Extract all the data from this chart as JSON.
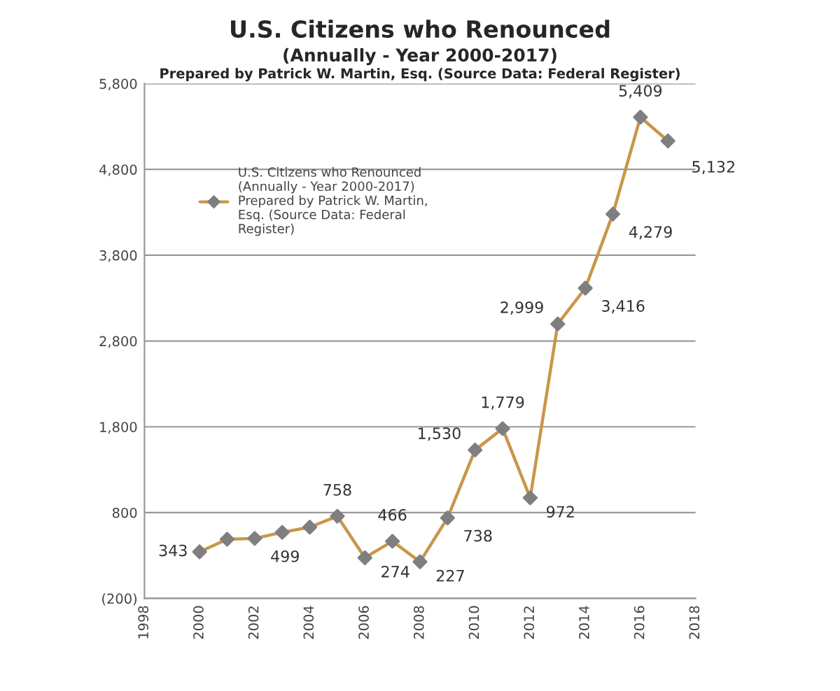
{
  "chart_data": {
    "type": "line",
    "title": "U.S. Citizens who Renounced",
    "subtitle": "(Annually - Year 2000-2017)",
    "annotations": [
      "Prepared by Patrick W. Martin, Esq. (Source Data: Federal Register)"
    ],
    "x": [
      2000,
      2001,
      2002,
      2003,
      2004,
      2005,
      2006,
      2007,
      2008,
      2009,
      2010,
      2011,
      2012,
      2013,
      2014,
      2015,
      2016,
      2017
    ],
    "series": [
      {
        "name": "U.S. Citizens who Renounced (Annually - Year 2000-2017) Prepared by Patrick W. Martin, Esq. (Source Data: Federal Register)",
        "color": "#c9964a",
        "values": [
          343,
          490,
          499,
          570,
          630,
          758,
          274,
          466,
          227,
          738,
          1530,
          1779,
          972,
          2999,
          3416,
          4279,
          5409,
          5132
        ],
        "value_labels": [
          "343",
          null,
          "499",
          null,
          null,
          "758",
          "274",
          "466",
          "227",
          "738",
          "1,530",
          "1,779",
          "972",
          "2,999",
          "3,416",
          "4,279",
          "5,409",
          "5,132"
        ]
      }
    ],
    "xlim": [
      1998,
      2018
    ],
    "xticks": [
      1998,
      2000,
      2002,
      2004,
      2006,
      2008,
      2010,
      2012,
      2014,
      2016,
      2018
    ],
    "ylim": [
      -200,
      5800
    ],
    "yticks": [
      {
        "value": -200,
        "label": "(200)"
      },
      {
        "value": 800,
        "label": "800"
      },
      {
        "value": 1800,
        "label": "1,800"
      },
      {
        "value": 2800,
        "label": "2,800"
      },
      {
        "value": 3800,
        "label": "3,800"
      },
      {
        "value": 4800,
        "label": "4,800"
      },
      {
        "value": 5800,
        "label": "5,800"
      }
    ],
    "grid": "y",
    "legend": "top left",
    "marker": "diamond",
    "line_style": "solid"
  }
}
